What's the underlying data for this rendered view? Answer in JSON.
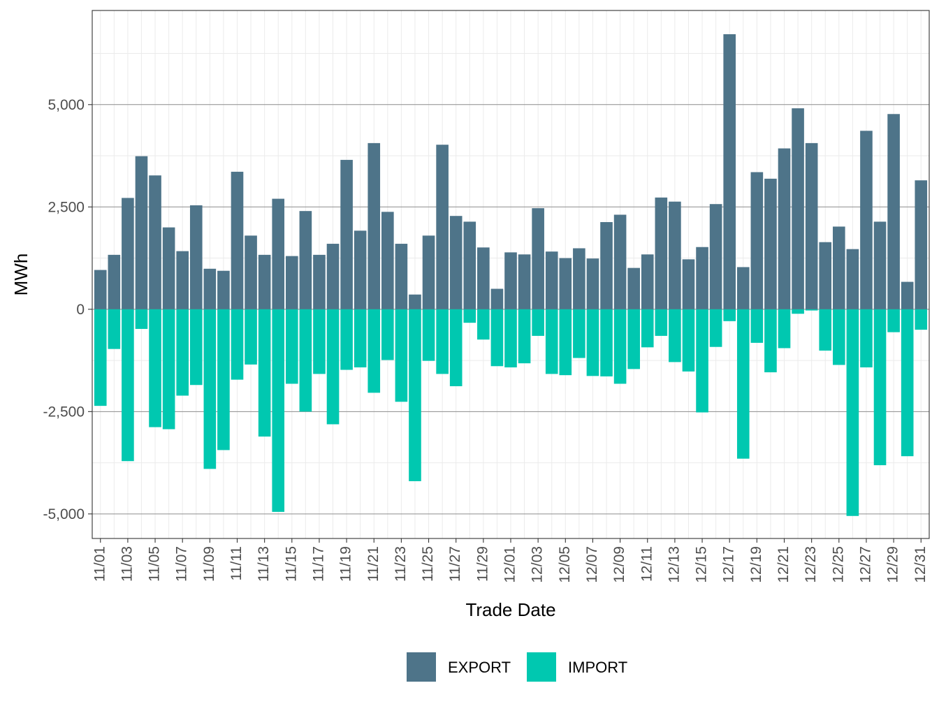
{
  "chart_data": {
    "type": "bar",
    "stacked": "diverging",
    "xlabel": "Trade Date",
    "ylabel": "MWh",
    "ylim": [
      -5600,
      7300
    ],
    "y_ticks": [
      -5000,
      -2500,
      0,
      2500,
      5000
    ],
    "y_tick_labels": [
      "-5,000",
      "-2,500",
      "0",
      "2,500",
      "5,000"
    ],
    "grid": true,
    "legend_position": "bottom",
    "categories": [
      "11/01",
      "11/02",
      "11/03",
      "11/04",
      "11/05",
      "11/06",
      "11/07",
      "11/08",
      "11/09",
      "11/10",
      "11/11",
      "11/12",
      "11/13",
      "11/14",
      "11/15",
      "11/16",
      "11/17",
      "11/18",
      "11/19",
      "11/20",
      "11/21",
      "11/22",
      "11/23",
      "11/24",
      "11/25",
      "11/26",
      "11/27",
      "11/28",
      "11/29",
      "11/30",
      "12/01",
      "12/02",
      "12/03",
      "12/04",
      "12/05",
      "12/06",
      "12/07",
      "12/08",
      "12/09",
      "12/10",
      "12/11",
      "12/12",
      "12/13",
      "12/14",
      "12/15",
      "12/16",
      "12/17",
      "12/18",
      "12/19",
      "12/20",
      "12/21",
      "12/22",
      "12/23",
      "12/24",
      "12/25",
      "12/26",
      "12/27",
      "12/28",
      "12/29",
      "12/30",
      "12/31"
    ],
    "x_tick_labels": [
      "11/01",
      "11/03",
      "11/05",
      "11/07",
      "11/09",
      "11/11",
      "11/13",
      "11/15",
      "11/17",
      "11/19",
      "11/21",
      "11/23",
      "11/25",
      "11/27",
      "11/29",
      "12/01",
      "12/03",
      "12/05",
      "12/07",
      "12/09",
      "12/11",
      "12/13",
      "12/15",
      "12/17",
      "12/19",
      "12/21",
      "12/23",
      "12/25",
      "12/27",
      "12/29",
      "12/31"
    ],
    "series": [
      {
        "name": "EXPORT",
        "color": "#4e7489",
        "values": [
          960,
          1330,
          2720,
          3740,
          3270,
          2000,
          1420,
          2540,
          990,
          940,
          3360,
          1800,
          1330,
          2700,
          1300,
          2400,
          1330,
          1600,
          3650,
          1920,
          4060,
          2380,
          1600,
          360,
          1800,
          4020,
          2280,
          2140,
          1510,
          500,
          1390,
          1340,
          2470,
          1410,
          1250,
          1490,
          1240,
          2130,
          2310,
          1010,
          1340,
          2730,
          2630,
          1220,
          1520,
          2570,
          6720,
          1030,
          3350,
          3190,
          3930,
          4910,
          4060,
          1640,
          2020,
          1470,
          4360,
          2140,
          4770,
          670,
          3150
        ]
      },
      {
        "name": "IMPORT",
        "color": "#00c8b0",
        "values": [
          -2360,
          -970,
          -3710,
          -480,
          -2880,
          -2930,
          -2110,
          -1850,
          -3900,
          -3440,
          -1720,
          -1350,
          -3110,
          -4950,
          -1820,
          -2500,
          -1580,
          -2810,
          -1480,
          -1420,
          -2040,
          -1240,
          -2260,
          -4200,
          -1260,
          -1580,
          -1880,
          -330,
          -740,
          -1390,
          -1420,
          -1320,
          -650,
          -1580,
          -1610,
          -1190,
          -1630,
          -1640,
          -1820,
          -1460,
          -930,
          -650,
          -1290,
          -1520,
          -2520,
          -920,
          -290,
          -3650,
          -820,
          -1540,
          -950,
          -110,
          -30,
          -1010,
          -1360,
          -5050,
          -1420,
          -3810,
          -560,
          -3590,
          -500
        ]
      }
    ]
  }
}
